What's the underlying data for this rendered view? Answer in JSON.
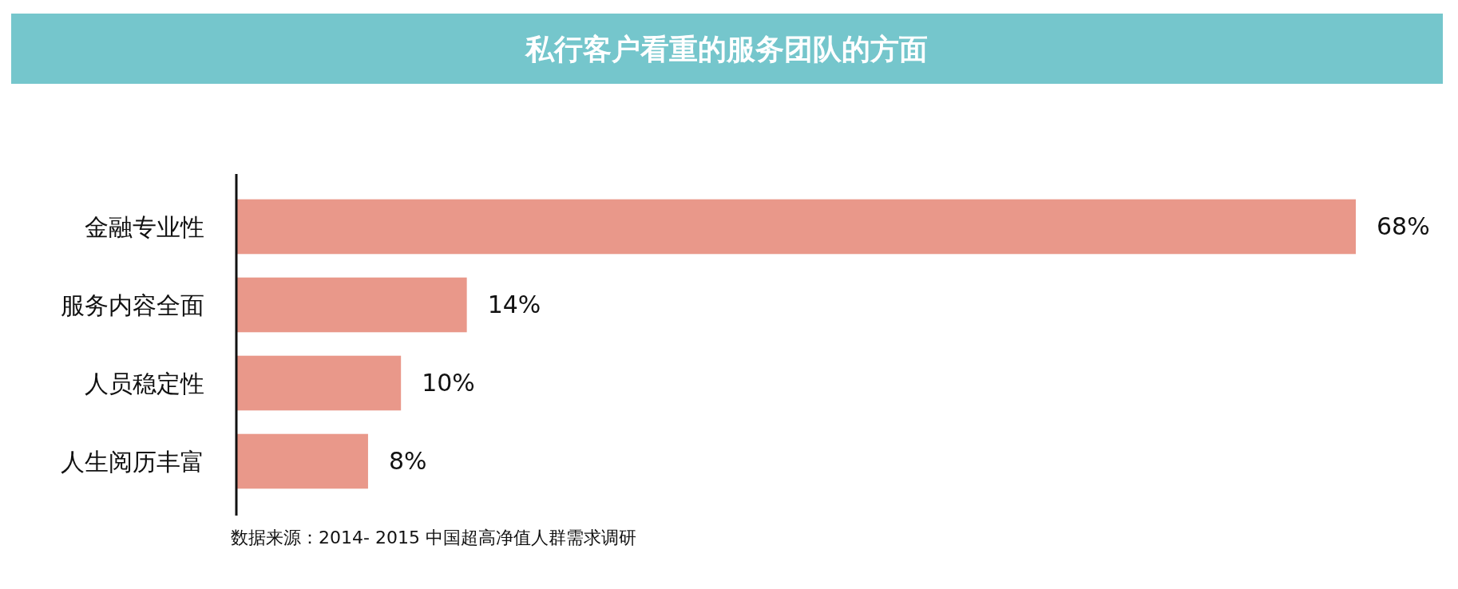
{
  "chart_data": {
    "type": "bar",
    "orientation": "horizontal",
    "title": "私行客户看重的服务团队的方面",
    "categories": [
      "金融专业性",
      "服务内容全面",
      "人员稳定性",
      "人生阅历丰富"
    ],
    "values": [
      68,
      14,
      10,
      8
    ],
    "value_labels": [
      "68%",
      "14%",
      "10%",
      "8%"
    ],
    "color": "#e9988a",
    "annotations": [
      "数据来源：2014- 2015 中国超高净值人群需求调研"
    ]
  }
}
